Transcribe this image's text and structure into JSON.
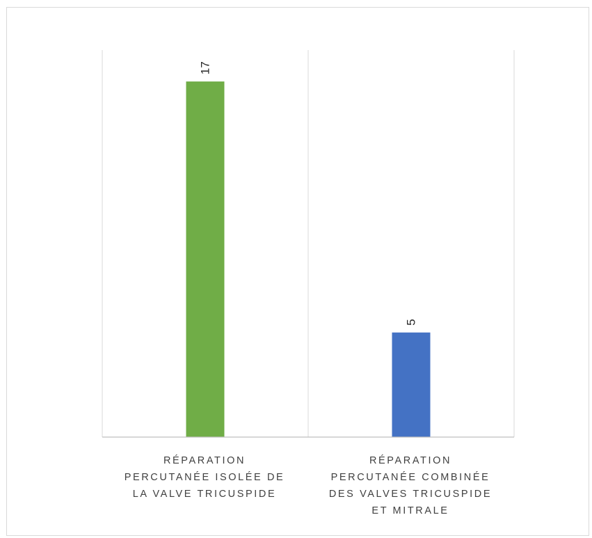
{
  "chart_data": {
    "type": "bar",
    "title": "",
    "xlabel": "",
    "ylabel": "",
    "categories": [
      "RÉPARATION\nPERCUTANÉE ISOLÉE DE\nLA VALVE TRICUSPIDE",
      "RÉPARATION\nPERCUTANÉE COMBINÉE\nDES VALVES  TRICUSPIDE\nET MITRALE"
    ],
    "values": [
      17,
      5
    ],
    "data_labels": [
      "17",
      "5"
    ],
    "bar_colors": [
      "#70ad47",
      "#4472c4"
    ],
    "ylim": [
      0,
      18.5
    ],
    "grid": "vertical category separators",
    "legend": "none",
    "data_label_orientation": "rotated 90° above bar"
  }
}
